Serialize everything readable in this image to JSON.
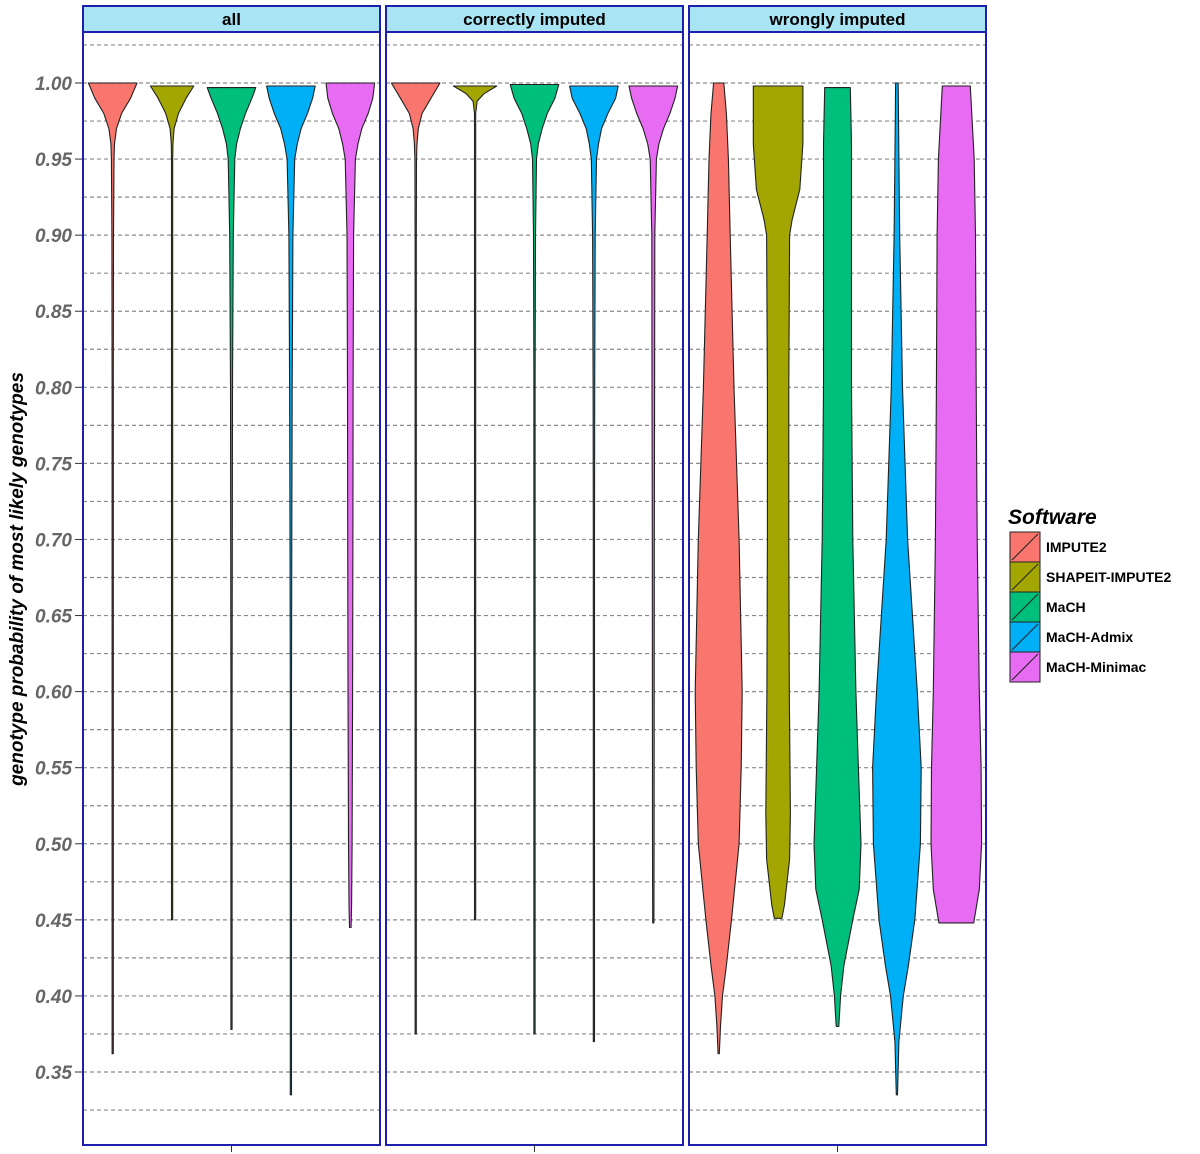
{
  "chart_data": {
    "type": "violin",
    "ylabel": "genotype probability of most likely genotypes",
    "xlabel": "",
    "ylim": [
      0.315,
      1.04
    ],
    "y_ticks": [
      0.35,
      0.4,
      0.45,
      0.5,
      0.55,
      0.6,
      0.65,
      0.7,
      0.75,
      0.8,
      0.85,
      0.9,
      0.95,
      1.0
    ],
    "y_tick_labels": [
      "0.35",
      "0.40",
      "0.45",
      "0.50",
      "0.55",
      "0.60",
      "0.65",
      "0.70",
      "0.75",
      "0.80",
      "0.85",
      "0.90",
      "0.95",
      "1.00"
    ],
    "grid": "dashed horizontal",
    "legend": {
      "title": "Software",
      "position": "right",
      "items": [
        {
          "name": "IMPUTE2",
          "color": "#F8766D"
        },
        {
          "name": "SHAPEIT-IMPUTE2",
          "color": "#A3A500"
        },
        {
          "name": "MaCH",
          "color": "#00BF7D"
        },
        {
          "name": "MaCH-Admix",
          "color": "#00B0F6"
        },
        {
          "name": "MaCH-Minimac",
          "color": "#E76BF3"
        }
      ]
    },
    "panels": [
      {
        "title": "all",
        "violins": [
          {
            "series": "IMPUTE2",
            "min": 0.362,
            "max": 1.0,
            "width_profile": [
              [
                1.0,
                0.95
              ],
              [
                0.99,
                0.7
              ],
              [
                0.98,
                0.35
              ],
              [
                0.97,
                0.15
              ],
              [
                0.96,
                0.07
              ],
              [
                0.95,
                0.05
              ],
              [
                0.9,
                0.03
              ],
              [
                0.8,
                0.025
              ],
              [
                0.7,
                0.02
              ],
              [
                0.6,
                0.015
              ],
              [
                0.5,
                0.01
              ],
              [
                0.45,
                0.004
              ],
              [
                0.362,
                0.002
              ]
            ]
          },
          {
            "series": "SHAPEIT-IMPUTE2",
            "min": 0.45,
            "max": 0.998,
            "width_profile": [
              [
                0.998,
                0.85
              ],
              [
                0.99,
                0.55
              ],
              [
                0.98,
                0.25
              ],
              [
                0.97,
                0.08
              ],
              [
                0.96,
                0.03
              ],
              [
                0.95,
                0.015
              ],
              [
                0.9,
                0.01
              ],
              [
                0.7,
                0.008
              ],
              [
                0.5,
                0.006
              ],
              [
                0.45,
                0.002
              ]
            ]
          },
          {
            "series": "MaCH",
            "min": 0.378,
            "max": 0.997,
            "width_profile": [
              [
                0.997,
                0.95
              ],
              [
                0.99,
                0.8
              ],
              [
                0.98,
                0.55
              ],
              [
                0.97,
                0.35
              ],
              [
                0.96,
                0.2
              ],
              [
                0.95,
                0.13
              ],
              [
                0.9,
                0.07
              ],
              [
                0.8,
                0.04
              ],
              [
                0.7,
                0.03
              ],
              [
                0.6,
                0.02
              ],
              [
                0.5,
                0.012
              ],
              [
                0.45,
                0.004
              ],
              [
                0.378,
                0.002
              ]
            ]
          },
          {
            "series": "MaCH-Admix",
            "min": 0.335,
            "max": 0.998,
            "width_profile": [
              [
                0.998,
                0.95
              ],
              [
                0.99,
                0.85
              ],
              [
                0.98,
                0.65
              ],
              [
                0.97,
                0.4
              ],
              [
                0.96,
                0.25
              ],
              [
                0.95,
                0.15
              ],
              [
                0.9,
                0.08
              ],
              [
                0.8,
                0.05
              ],
              [
                0.7,
                0.035
              ],
              [
                0.6,
                0.025
              ],
              [
                0.5,
                0.015
              ],
              [
                0.45,
                0.004
              ],
              [
                0.335,
                0.002
              ]
            ]
          },
          {
            "series": "MaCH-Minimac",
            "min": 0.445,
            "max": 1.0,
            "width_profile": [
              [
                1.0,
                0.95
              ],
              [
                0.99,
                0.88
              ],
              [
                0.98,
                0.7
              ],
              [
                0.97,
                0.45
              ],
              [
                0.96,
                0.3
              ],
              [
                0.95,
                0.2
              ],
              [
                0.9,
                0.13
              ],
              [
                0.8,
                0.11
              ],
              [
                0.7,
                0.1
              ],
              [
                0.6,
                0.09
              ],
              [
                0.5,
                0.07
              ],
              [
                0.46,
                0.05
              ],
              [
                0.445,
                0.03
              ]
            ]
          }
        ]
      },
      {
        "title": "correctly imputed",
        "violins": [
          {
            "series": "IMPUTE2",
            "min": 0.375,
            "max": 1.0,
            "width_profile": [
              [
                1.0,
                0.95
              ],
              [
                0.99,
                0.6
              ],
              [
                0.98,
                0.25
              ],
              [
                0.97,
                0.1
              ],
              [
                0.96,
                0.05
              ],
              [
                0.95,
                0.03
              ],
              [
                0.9,
                0.02
              ],
              [
                0.8,
                0.015
              ],
              [
                0.7,
                0.012
              ],
              [
                0.6,
                0.01
              ],
              [
                0.5,
                0.008
              ],
              [
                0.375,
                0.002
              ]
            ]
          },
          {
            "series": "SHAPEIT-IMPUTE2",
            "min": 0.45,
            "max": 0.998,
            "width_profile": [
              [
                0.998,
                0.85
              ],
              [
                0.993,
                0.35
              ],
              [
                0.988,
                0.08
              ],
              [
                0.98,
                0.02
              ],
              [
                0.95,
                0.008
              ],
              [
                0.7,
                0.006
              ],
              [
                0.45,
                0.002
              ]
            ]
          },
          {
            "series": "MaCH",
            "min": 0.375,
            "max": 0.999,
            "width_profile": [
              [
                0.999,
                0.95
              ],
              [
                0.99,
                0.8
              ],
              [
                0.98,
                0.5
              ],
              [
                0.97,
                0.3
              ],
              [
                0.96,
                0.15
              ],
              [
                0.95,
                0.08
              ],
              [
                0.9,
                0.04
              ],
              [
                0.8,
                0.025
              ],
              [
                0.7,
                0.02
              ],
              [
                0.6,
                0.015
              ],
              [
                0.5,
                0.01
              ],
              [
                0.375,
                0.002
              ]
            ]
          },
          {
            "series": "MaCH-Admix",
            "min": 0.37,
            "max": 0.998,
            "width_profile": [
              [
                0.998,
                0.95
              ],
              [
                0.99,
                0.85
              ],
              [
                0.98,
                0.55
              ],
              [
                0.97,
                0.3
              ],
              [
                0.96,
                0.18
              ],
              [
                0.95,
                0.1
              ],
              [
                0.9,
                0.05
              ],
              [
                0.8,
                0.03
              ],
              [
                0.7,
                0.02
              ],
              [
                0.6,
                0.015
              ],
              [
                0.5,
                0.01
              ],
              [
                0.37,
                0.002
              ]
            ]
          },
          {
            "series": "MaCH-Minimac",
            "min": 0.448,
            "max": 0.998,
            "width_profile": [
              [
                0.998,
                0.95
              ],
              [
                0.99,
                0.85
              ],
              [
                0.98,
                0.65
              ],
              [
                0.97,
                0.4
              ],
              [
                0.96,
                0.22
              ],
              [
                0.95,
                0.12
              ],
              [
                0.9,
                0.06
              ],
              [
                0.8,
                0.05
              ],
              [
                0.7,
                0.04
              ],
              [
                0.6,
                0.035
              ],
              [
                0.5,
                0.03
              ],
              [
                0.448,
                0.01
              ]
            ]
          }
        ]
      },
      {
        "title": "wrongly imputed",
        "violins": [
          {
            "series": "IMPUTE2",
            "min": 0.362,
            "max": 1.0,
            "width_profile": [
              [
                1.0,
                0.2
              ],
              [
                0.98,
                0.3
              ],
              [
                0.95,
                0.38
              ],
              [
                0.9,
                0.45
              ],
              [
                0.8,
                0.6
              ],
              [
                0.7,
                0.8
              ],
              [
                0.6,
                0.92
              ],
              [
                0.55,
                0.88
              ],
              [
                0.5,
                0.8
              ],
              [
                0.45,
                0.5
              ],
              [
                0.42,
                0.3
              ],
              [
                0.4,
                0.15
              ],
              [
                0.38,
                0.07
              ],
              [
                0.362,
                0.02
              ]
            ]
          },
          {
            "series": "SHAPEIT-IMPUTE2",
            "min": 0.451,
            "max": 0.998,
            "width_profile": [
              [
                0.998,
                0.97
              ],
              [
                0.96,
                0.97
              ],
              [
                0.93,
                0.85
              ],
              [
                0.91,
                0.55
              ],
              [
                0.9,
                0.45
              ],
              [
                0.8,
                0.42
              ],
              [
                0.7,
                0.42
              ],
              [
                0.6,
                0.44
              ],
              [
                0.52,
                0.48
              ],
              [
                0.49,
                0.45
              ],
              [
                0.46,
                0.25
              ],
              [
                0.451,
                0.15
              ]
            ]
          },
          {
            "series": "MaCH",
            "min": 0.38,
            "max": 0.997,
            "width_profile": [
              [
                0.997,
                0.5
              ],
              [
                0.96,
                0.55
              ],
              [
                0.9,
                0.55
              ],
              [
                0.8,
                0.55
              ],
              [
                0.7,
                0.6
              ],
              [
                0.6,
                0.72
              ],
              [
                0.55,
                0.82
              ],
              [
                0.5,
                0.92
              ],
              [
                0.47,
                0.85
              ],
              [
                0.45,
                0.6
              ],
              [
                0.42,
                0.25
              ],
              [
                0.4,
                0.12
              ],
              [
                0.38,
                0.05
              ]
            ]
          },
          {
            "series": "MaCH-Admix",
            "min": 0.335,
            "max": 1.0,
            "width_profile": [
              [
                1.0,
                0.05
              ],
              [
                0.95,
                0.08
              ],
              [
                0.9,
                0.11
              ],
              [
                0.8,
                0.22
              ],
              [
                0.7,
                0.42
              ],
              [
                0.6,
                0.8
              ],
              [
                0.55,
                0.95
              ],
              [
                0.5,
                0.92
              ],
              [
                0.45,
                0.7
              ],
              [
                0.42,
                0.45
              ],
              [
                0.4,
                0.25
              ],
              [
                0.37,
                0.08
              ],
              [
                0.335,
                0.02
              ]
            ]
          },
          {
            "series": "MaCH-Minimac",
            "min": 0.448,
            "max": 0.998,
            "width_profile": [
              [
                0.998,
                0.55
              ],
              [
                0.95,
                0.7
              ],
              [
                0.9,
                0.75
              ],
              [
                0.8,
                0.78
              ],
              [
                0.7,
                0.82
              ],
              [
                0.6,
                0.9
              ],
              [
                0.55,
                0.97
              ],
              [
                0.5,
                0.99
              ],
              [
                0.47,
                0.9
              ],
              [
                0.455,
                0.75
              ],
              [
                0.448,
                0.68
              ]
            ]
          }
        ]
      }
    ]
  }
}
